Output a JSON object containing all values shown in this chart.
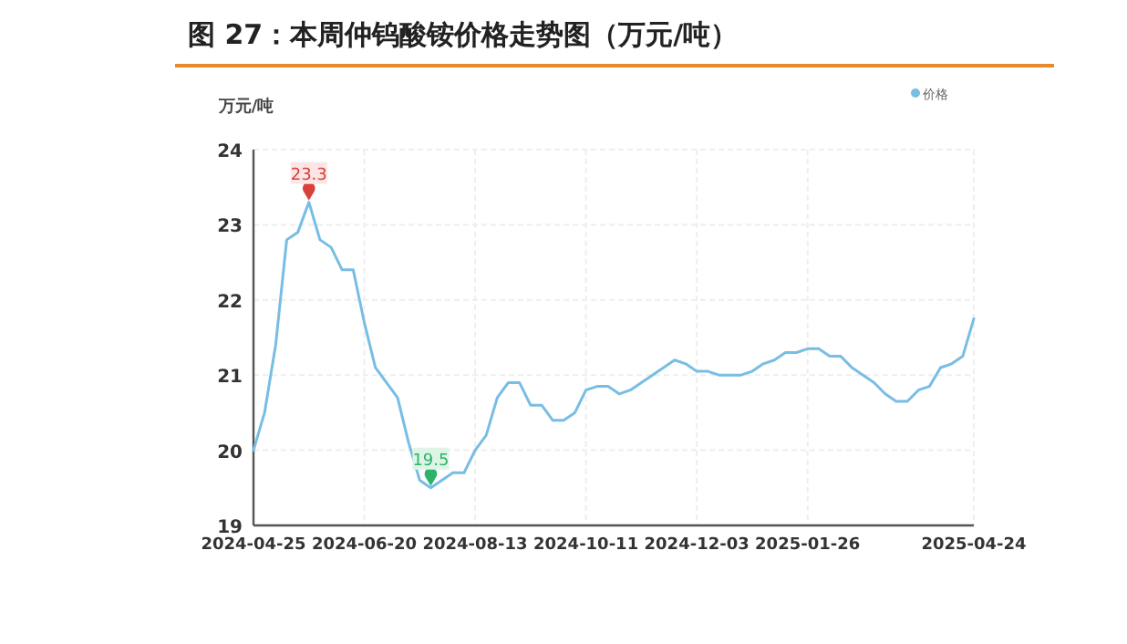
{
  "chart_data": {
    "type": "line",
    "title": "图 27：本周仲钨酸铵价格走势图（万元/吨）",
    "ylabel": "万元/吨",
    "categories": [
      "2024-04-25",
      null,
      null,
      null,
      null,
      null,
      null,
      null,
      null,
      null,
      "2024-06-20",
      null,
      null,
      null,
      null,
      null,
      null,
      null,
      null,
      null,
      "2024-08-13",
      null,
      null,
      null,
      null,
      null,
      null,
      null,
      null,
      null,
      "2024-10-11",
      null,
      null,
      null,
      null,
      null,
      null,
      null,
      null,
      null,
      "2024-12-03",
      null,
      null,
      null,
      null,
      null,
      null,
      null,
      null,
      null,
      "2025-01-26",
      null,
      null,
      null,
      null,
      null,
      null,
      null,
      null,
      null,
      null,
      null,
      null,
      null,
      null,
      "2025-04-24"
    ],
    "series": [
      {
        "name": "价格",
        "color": "#78bde3",
        "values": [
          20.0,
          20.5,
          21.4,
          22.8,
          22.9,
          23.3,
          22.8,
          22.7,
          22.4,
          22.4,
          21.7,
          21.1,
          20.9,
          20.7,
          20.1,
          19.6,
          19.5,
          19.6,
          19.7,
          19.7,
          20.0,
          20.2,
          20.7,
          20.9,
          20.9,
          20.6,
          20.6,
          20.4,
          20.4,
          20.5,
          20.8,
          20.85,
          20.85,
          20.75,
          20.8,
          20.9,
          21.0,
          21.1,
          21.2,
          21.15,
          21.05,
          21.05,
          21.0,
          21.0,
          21.0,
          21.05,
          21.15,
          21.2,
          21.3,
          21.3,
          21.35,
          21.35,
          21.25,
          21.25,
          21.1,
          21.0,
          20.9,
          20.75,
          20.65,
          20.65,
          20.8,
          20.85,
          21.1,
          21.15,
          21.25,
          21.75
        ],
        "value_labels": [
          null,
          null,
          null,
          null,
          null,
          "23.3",
          null,
          null,
          null,
          null,
          null,
          null,
          null,
          null,
          null,
          null,
          "19.5",
          null,
          null,
          null,
          null,
          null,
          null,
          null,
          null,
          null,
          null,
          null,
          null,
          null,
          null,
          null,
          null,
          null,
          null,
          null,
          null,
          null,
          null,
          null,
          null,
          null,
          null,
          null,
          null,
          null,
          null,
          null,
          null,
          null,
          null,
          null,
          null,
          null,
          null,
          null,
          null,
          null,
          null,
          null,
          null,
          null,
          null,
          null,
          null,
          null
        ]
      }
    ],
    "ylim": [
      19,
      24
    ],
    "yticks": [
      19,
      20,
      21,
      22,
      23,
      24
    ],
    "grid": true,
    "legend": "top right",
    "marker": "none",
    "line_style": "solid"
  }
}
